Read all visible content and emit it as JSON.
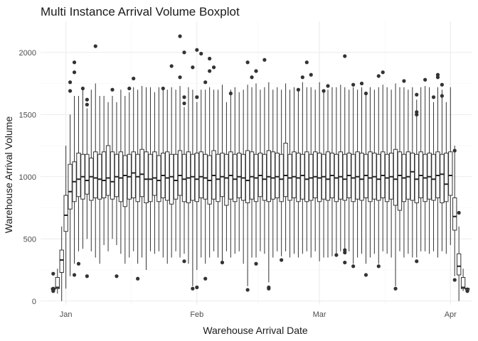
{
  "chart_data": {
    "type": "boxplot",
    "title": "Multi Instance Arrival Volume Boxplot",
    "xlabel": "Warehouse Arrival Date",
    "ylabel": "Warehouse Arrival Volume",
    "x_range": [
      "2023-12-26",
      "2024-04-06"
    ],
    "ylim": [
      -30,
      2250
    ],
    "x_ticks": [
      {
        "date": "2024-01-01",
        "label": "Jan"
      },
      {
        "date": "2024-02-01",
        "label": "Feb"
      },
      {
        "date": "2024-03-01",
        "label": "Mar"
      },
      {
        "date": "2024-04-01",
        "label": "Apr"
      }
    ],
    "y_ticks": [
      0,
      500,
      1000,
      1500,
      2000
    ],
    "grid": true,
    "boxes": [
      {
        "date": "2023-12-29",
        "q1": 90,
        "median": 100,
        "q3": 105,
        "lower": 80,
        "upper": 110,
        "outliers": [
          80,
          100,
          220
        ]
      },
      {
        "date": "2023-12-30",
        "q1": 100,
        "median": 110,
        "q3": 190,
        "lower": 60,
        "upper": 260,
        "outliers": []
      },
      {
        "date": "2023-12-31",
        "q1": 230,
        "median": 330,
        "q3": 410,
        "lower": 0,
        "upper": 600,
        "outliers": []
      },
      {
        "date": "2024-01-01",
        "q1": 560,
        "median": 690,
        "q3": 850,
        "lower": 100,
        "upper": 1250,
        "outliers": []
      },
      {
        "date": "2024-01-02",
        "q1": 740,
        "median": 880,
        "q3": 1100,
        "lower": 200,
        "upper": 1500,
        "outliers": [
          1690,
          1760
        ]
      },
      {
        "date": "2024-01-03",
        "q1": 800,
        "median": 960,
        "q3": 1120,
        "lower": 300,
        "upper": 1650,
        "outliers": [
          1840,
          1920,
          210
        ]
      },
      {
        "date": "2024-01-04",
        "q1": 840,
        "median": 980,
        "q3": 1190,
        "lower": 400,
        "upper": 1650,
        "outliers": [
          300
        ]
      },
      {
        "date": "2024-01-05",
        "q1": 820,
        "median": 1000,
        "q3": 1180,
        "lower": 420,
        "upper": 1700,
        "outliers": [
          1710
        ]
      },
      {
        "date": "2024-01-06",
        "q1": 860,
        "median": 970,
        "q3": 1180,
        "lower": 500,
        "upper": 1550,
        "outliers": [
          1580,
          1620,
          200
        ]
      },
      {
        "date": "2024-01-07",
        "q1": 810,
        "median": 1000,
        "q3": 1150,
        "lower": 400,
        "upper": 1700,
        "outliers": []
      },
      {
        "date": "2024-01-08",
        "q1": 830,
        "median": 990,
        "q3": 1200,
        "lower": 350,
        "upper": 1750,
        "outliers": [
          2050
        ]
      },
      {
        "date": "2024-01-09",
        "q1": 820,
        "median": 980,
        "q3": 1180,
        "lower": 300,
        "upper": 1650,
        "outliers": []
      },
      {
        "date": "2024-01-10",
        "q1": 830,
        "median": 970,
        "q3": 1200,
        "lower": 450,
        "upper": 1650,
        "outliers": []
      },
      {
        "date": "2024-01-11",
        "q1": 850,
        "median": 990,
        "q3": 1250,
        "lower": 400,
        "upper": 1600,
        "outliers": []
      },
      {
        "date": "2024-01-12",
        "q1": 820,
        "median": 960,
        "q3": 1200,
        "lower": 500,
        "upper": 1650,
        "outliers": [
          1700
        ]
      },
      {
        "date": "2024-01-13",
        "q1": 840,
        "median": 1000,
        "q3": 1180,
        "lower": 450,
        "upper": 1600,
        "outliers": [
          200
        ]
      },
      {
        "date": "2024-01-14",
        "q1": 800,
        "median": 990,
        "q3": 1200,
        "lower": 380,
        "upper": 1700,
        "outliers": []
      },
      {
        "date": "2024-01-15",
        "q1": 760,
        "median": 1010,
        "q3": 1170,
        "lower": 300,
        "upper": 1650,
        "outliers": []
      },
      {
        "date": "2024-01-16",
        "q1": 820,
        "median": 1000,
        "q3": 1180,
        "lower": 350,
        "upper": 1680,
        "outliers": [
          1710
        ]
      },
      {
        "date": "2024-01-17",
        "q1": 830,
        "median": 1030,
        "q3": 1200,
        "lower": 400,
        "upper": 1720,
        "outliers": [
          1790
        ]
      },
      {
        "date": "2024-01-18",
        "q1": 800,
        "median": 1000,
        "q3": 1180,
        "lower": 300,
        "upper": 1700,
        "outliers": [
          180
        ]
      },
      {
        "date": "2024-01-19",
        "q1": 840,
        "median": 1020,
        "q3": 1220,
        "lower": 350,
        "upper": 1730,
        "outliers": []
      },
      {
        "date": "2024-01-20",
        "q1": 790,
        "median": 980,
        "q3": 1200,
        "lower": 250,
        "upper": 1720,
        "outliers": []
      },
      {
        "date": "2024-01-21",
        "q1": 800,
        "median": 980,
        "q3": 1180,
        "lower": 400,
        "upper": 1720,
        "outliers": []
      },
      {
        "date": "2024-01-22",
        "q1": 850,
        "median": 990,
        "q3": 1200,
        "lower": 380,
        "upper": 1680,
        "outliers": []
      },
      {
        "date": "2024-01-23",
        "q1": 800,
        "median": 970,
        "q3": 1170,
        "lower": 400,
        "upper": 1720,
        "outliers": []
      },
      {
        "date": "2024-01-24",
        "q1": 830,
        "median": 1010,
        "q3": 1190,
        "lower": 350,
        "upper": 1720,
        "outliers": [
          1710
        ]
      },
      {
        "date": "2024-01-25",
        "q1": 810,
        "median": 990,
        "q3": 1200,
        "lower": 300,
        "upper": 1700,
        "outliers": []
      },
      {
        "date": "2024-01-26",
        "q1": 780,
        "median": 1000,
        "q3": 1180,
        "lower": 350,
        "upper": 1720,
        "outliers": [
          1890
        ]
      },
      {
        "date": "2024-01-27",
        "q1": 820,
        "median": 970,
        "q3": 1180,
        "lower": 400,
        "upper": 1700,
        "outliers": []
      },
      {
        "date": "2024-01-28",
        "q1": 850,
        "median": 1010,
        "q3": 1210,
        "lower": 350,
        "upper": 1730,
        "outliers": [
          2130,
          1800
        ]
      },
      {
        "date": "2024-01-29",
        "q1": 800,
        "median": 980,
        "q3": 1180,
        "lower": 380,
        "upper": 1560,
        "outliers": [
          1590,
          1640,
          2000,
          320
        ]
      },
      {
        "date": "2024-01-30",
        "q1": 790,
        "median": 990,
        "q3": 1200,
        "lower": 300,
        "upper": 1720,
        "outliers": []
      },
      {
        "date": "2024-01-31",
        "q1": 810,
        "median": 1000,
        "q3": 1180,
        "lower": 120,
        "upper": 1700,
        "outliers": [
          100,
          1880
        ]
      },
      {
        "date": "2024-02-01",
        "q1": 800,
        "median": 980,
        "q3": 1190,
        "lower": 250,
        "upper": 1600,
        "outliers": [
          110,
          2020,
          1640
        ]
      },
      {
        "date": "2024-02-02",
        "q1": 830,
        "median": 1000,
        "q3": 1200,
        "lower": 350,
        "upper": 1700,
        "outliers": [
          1990
        ]
      },
      {
        "date": "2024-02-03",
        "q1": 820,
        "median": 990,
        "q3": 1180,
        "lower": 300,
        "upper": 1700,
        "outliers": [
          1760,
          180
        ]
      },
      {
        "date": "2024-02-04",
        "q1": 780,
        "median": 970,
        "q3": 1170,
        "lower": 350,
        "upper": 1720,
        "outliers": [
          1850,
          1950
        ]
      },
      {
        "date": "2024-02-05",
        "q1": 820,
        "median": 1010,
        "q3": 1210,
        "lower": 400,
        "upper": 1700,
        "outliers": [
          1880
        ]
      },
      {
        "date": "2024-02-06",
        "q1": 800,
        "median": 980,
        "q3": 1180,
        "lower": 350,
        "upper": 1700,
        "outliers": []
      },
      {
        "date": "2024-02-07",
        "q1": 840,
        "median": 1000,
        "q3": 1190,
        "lower": 320,
        "upper": 1740,
        "outliers": [
          310
        ]
      },
      {
        "date": "2024-02-08",
        "q1": 770,
        "median": 990,
        "q3": 1180,
        "lower": 400,
        "upper": 1600,
        "outliers": []
      },
      {
        "date": "2024-02-09",
        "q1": 820,
        "median": 1010,
        "q3": 1200,
        "lower": 350,
        "upper": 1700,
        "outliers": [
          1670
        ]
      },
      {
        "date": "2024-02-10",
        "q1": 800,
        "median": 980,
        "q3": 1180,
        "lower": 380,
        "upper": 1720,
        "outliers": []
      },
      {
        "date": "2024-02-11",
        "q1": 830,
        "median": 1000,
        "q3": 1190,
        "lower": 400,
        "upper": 1680,
        "outliers": []
      },
      {
        "date": "2024-02-12",
        "q1": 810,
        "median": 990,
        "q3": 1180,
        "lower": 300,
        "upper": 1700,
        "outliers": []
      },
      {
        "date": "2024-02-13",
        "q1": 790,
        "median": 970,
        "q3": 1210,
        "lower": 120,
        "upper": 1740,
        "outliers": [
          90,
          1920
        ]
      },
      {
        "date": "2024-02-14",
        "q1": 820,
        "median": 1000,
        "q3": 1200,
        "lower": 350,
        "upper": 1720,
        "outliers": [
          1800
        ]
      },
      {
        "date": "2024-02-15",
        "q1": 800,
        "median": 990,
        "q3": 1180,
        "lower": 350,
        "upper": 1750,
        "outliers": [
          1850,
          300
        ]
      },
      {
        "date": "2024-02-16",
        "q1": 840,
        "median": 1010,
        "q3": 1190,
        "lower": 400,
        "upper": 1700,
        "outliers": []
      },
      {
        "date": "2024-02-17",
        "q1": 810,
        "median": 980,
        "q3": 1180,
        "lower": 380,
        "upper": 1720,
        "outliers": [
          1940
        ]
      },
      {
        "date": "2024-02-18",
        "q1": 800,
        "median": 1000,
        "q3": 1210,
        "lower": 150,
        "upper": 1760,
        "outliers": [
          100,
          110
        ]
      },
      {
        "date": "2024-02-19",
        "q1": 820,
        "median": 990,
        "q3": 1200,
        "lower": 350,
        "upper": 1700,
        "outliers": []
      },
      {
        "date": "2024-02-20",
        "q1": 830,
        "median": 1000,
        "q3": 1190,
        "lower": 400,
        "upper": 1720,
        "outliers": []
      },
      {
        "date": "2024-02-21",
        "q1": 800,
        "median": 980,
        "q3": 1180,
        "lower": 360,
        "upper": 1700,
        "outliers": [
          330
        ]
      },
      {
        "date": "2024-02-22",
        "q1": 840,
        "median": 1010,
        "q3": 1270,
        "lower": 400,
        "upper": 1750,
        "outliers": []
      },
      {
        "date": "2024-02-23",
        "q1": 810,
        "median": 990,
        "q3": 1180,
        "lower": 350,
        "upper": 1700,
        "outliers": []
      },
      {
        "date": "2024-02-24",
        "q1": 830,
        "median": 1000,
        "q3": 1200,
        "lower": 380,
        "upper": 1720,
        "outliers": []
      },
      {
        "date": "2024-02-25",
        "q1": 800,
        "median": 990,
        "q3": 1190,
        "lower": 350,
        "upper": 1700,
        "outliers": [
          1700
        ]
      },
      {
        "date": "2024-02-26",
        "q1": 820,
        "median": 1010,
        "q3": 1180,
        "lower": 380,
        "upper": 1760,
        "outliers": [
          1800
        ]
      },
      {
        "date": "2024-02-27",
        "q1": 800,
        "median": 980,
        "q3": 1200,
        "lower": 400,
        "upper": 1720,
        "outliers": [
          1920
        ]
      },
      {
        "date": "2024-02-28",
        "q1": 810,
        "median": 990,
        "q3": 1180,
        "lower": 350,
        "upper": 1720,
        "outliers": [
          1820
        ]
      },
      {
        "date": "2024-02-29",
        "q1": 830,
        "median": 1000,
        "q3": 1200,
        "lower": 400,
        "upper": 1700,
        "outliers": []
      },
      {
        "date": "2024-03-01",
        "q1": 800,
        "median": 990,
        "q3": 1190,
        "lower": 320,
        "upper": 1760,
        "outliers": []
      },
      {
        "date": "2024-03-02",
        "q1": 820,
        "median": 1000,
        "q3": 1180,
        "lower": 350,
        "upper": 1700,
        "outliers": [
          1690
        ]
      },
      {
        "date": "2024-03-03",
        "q1": 810,
        "median": 980,
        "q3": 1200,
        "lower": 350,
        "upper": 1700,
        "outliers": [
          1730
        ]
      },
      {
        "date": "2024-03-04",
        "q1": 830,
        "median": 1010,
        "q3": 1190,
        "lower": 360,
        "upper": 1720,
        "outliers": []
      },
      {
        "date": "2024-03-05",
        "q1": 800,
        "median": 990,
        "q3": 1180,
        "lower": 380,
        "upper": 1720,
        "outliers": [
          370
        ]
      },
      {
        "date": "2024-03-06",
        "q1": 820,
        "median": 1000,
        "q3": 1200,
        "lower": 400,
        "upper": 1740,
        "outliers": []
      },
      {
        "date": "2024-03-07",
        "q1": 810,
        "median": 980,
        "q3": 1180,
        "lower": 420,
        "upper": 1720,
        "outliers": [
          390,
          410,
          310,
          1970
        ]
      },
      {
        "date": "2024-03-08",
        "q1": 830,
        "median": 1010,
        "q3": 1190,
        "lower": 400,
        "upper": 1700,
        "outliers": []
      },
      {
        "date": "2024-03-09",
        "q1": 800,
        "median": 990,
        "q3": 1180,
        "lower": 300,
        "upper": 1720,
        "outliers": [
          280,
          1740
        ]
      },
      {
        "date": "2024-03-10",
        "q1": 820,
        "median": 1000,
        "q3": 1200,
        "lower": 350,
        "upper": 1700,
        "outliers": []
      },
      {
        "date": "2024-03-11",
        "q1": 810,
        "median": 980,
        "q3": 1190,
        "lower": 380,
        "upper": 1720,
        "outliers": [
          1750
        ]
      },
      {
        "date": "2024-03-12",
        "q1": 830,
        "median": 1010,
        "q3": 1180,
        "lower": 300,
        "upper": 1680,
        "outliers": [
          1670,
          210
        ]
      },
      {
        "date": "2024-03-13",
        "q1": 800,
        "median": 990,
        "q3": 1200,
        "lower": 350,
        "upper": 1720,
        "outliers": []
      },
      {
        "date": "2024-03-14",
        "q1": 820,
        "median": 1000,
        "q3": 1190,
        "lower": 380,
        "upper": 1700,
        "outliers": []
      },
      {
        "date": "2024-03-15",
        "q1": 810,
        "median": 980,
        "q3": 1180,
        "lower": 300,
        "upper": 1720,
        "outliers": [
          280,
          1810
        ]
      },
      {
        "date": "2024-03-16",
        "q1": 830,
        "median": 1010,
        "q3": 1200,
        "lower": 400,
        "upper": 1740,
        "outliers": [
          1840
        ]
      },
      {
        "date": "2024-03-17",
        "q1": 800,
        "median": 990,
        "q3": 1180,
        "lower": 380,
        "upper": 1720,
        "outliers": []
      },
      {
        "date": "2024-03-18",
        "q1": 820,
        "median": 1000,
        "q3": 1190,
        "lower": 350,
        "upper": 1700,
        "outliers": []
      },
      {
        "date": "2024-03-19",
        "q1": 770,
        "median": 980,
        "q3": 1220,
        "lower": 120,
        "upper": 1750,
        "outliers": [
          100
        ]
      },
      {
        "date": "2024-03-20",
        "q1": 730,
        "median": 1010,
        "q3": 1200,
        "lower": 400,
        "upper": 1720,
        "outliers": []
      },
      {
        "date": "2024-03-21",
        "q1": 800,
        "median": 990,
        "q3": 1180,
        "lower": 350,
        "upper": 1720,
        "outliers": [
          1770
        ]
      },
      {
        "date": "2024-03-22",
        "q1": 820,
        "median": 1000,
        "q3": 1200,
        "lower": 380,
        "upper": 1700,
        "outliers": []
      },
      {
        "date": "2024-03-23",
        "q1": 810,
        "median": 1040,
        "q3": 1190,
        "lower": 350,
        "upper": 1720,
        "outliers": []
      },
      {
        "date": "2024-03-24",
        "q1": 790,
        "median": 980,
        "q3": 1180,
        "lower": 350,
        "upper": 1620,
        "outliers": [
          1660,
          1500,
          1520,
          320
        ]
      },
      {
        "date": "2024-03-25",
        "q1": 830,
        "median": 1010,
        "q3": 1200,
        "lower": 400,
        "upper": 1720,
        "outliers": []
      },
      {
        "date": "2024-03-26",
        "q1": 800,
        "median": 990,
        "q3": 1180,
        "lower": 400,
        "upper": 1730,
        "outliers": [
          1780
        ]
      },
      {
        "date": "2024-03-27",
        "q1": 820,
        "median": 1000,
        "q3": 1190,
        "lower": 380,
        "upper": 1720,
        "outliers": []
      },
      {
        "date": "2024-03-28",
        "q1": 810,
        "median": 980,
        "q3": 1180,
        "lower": 400,
        "upper": 1600,
        "outliers": [
          1640
        ]
      },
      {
        "date": "2024-03-29",
        "q1": 830,
        "median": 1010,
        "q3": 1200,
        "lower": 350,
        "upper": 1720,
        "outliers": [
          1800,
          1820
        ]
      },
      {
        "date": "2024-03-30",
        "q1": 790,
        "median": 1020,
        "q3": 1180,
        "lower": 400,
        "upper": 1700,
        "outliers": [
          1650,
          1740
        ]
      },
      {
        "date": "2024-03-31",
        "q1": 800,
        "median": 940,
        "q3": 1190,
        "lower": 380,
        "upper": 1600,
        "outliers": []
      },
      {
        "date": "2024-04-01",
        "q1": 850,
        "median": 1010,
        "q3": 1200,
        "lower": 450,
        "upper": 1720,
        "outliers": []
      },
      {
        "date": "2024-04-02",
        "q1": 570,
        "median": 680,
        "q3": 830,
        "lower": 200,
        "upper": 1250,
        "outliers": [
          170,
          1210
        ]
      },
      {
        "date": "2024-04-03",
        "q1": 210,
        "median": 280,
        "q3": 380,
        "lower": 0,
        "upper": 600,
        "outliers": [
          710
        ]
      },
      {
        "date": "2024-04-04",
        "q1": 100,
        "median": 110,
        "q3": 190,
        "lower": 80,
        "upper": 260,
        "outliers": []
      },
      {
        "date": "2024-04-05",
        "q1": 90,
        "median": 100,
        "q3": 100,
        "lower": 80,
        "upper": 110,
        "outliers": [
          80
        ]
      }
    ]
  }
}
